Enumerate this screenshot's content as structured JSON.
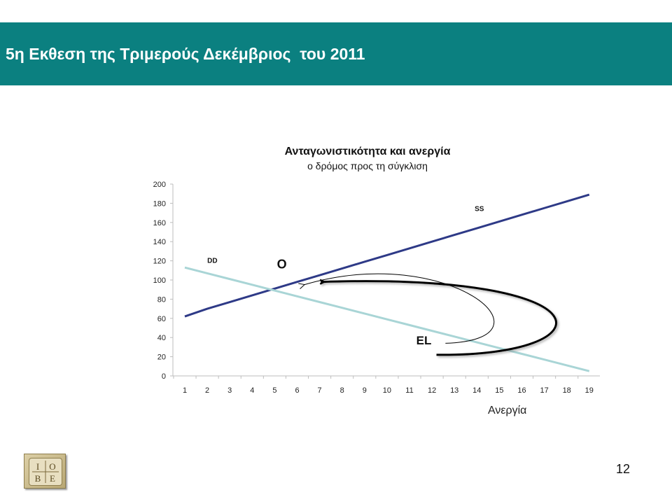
{
  "slide": {
    "title": "5η Εκθεση της Τριμερούς Δεκέμβριος  του 2011",
    "page_number": "12",
    "logo_text": "ΙΟΒΕ",
    "colors": {
      "header": "#0b8080",
      "ss_line": "#2e3a87",
      "dd_line": "#a9d5d6",
      "arrows": "#000000"
    }
  },
  "chart_data": {
    "type": "line",
    "title": "Ανταγωνιστικότητα και ανεργία",
    "subtitle": "ο δρόμος προς τη σύγκλιση",
    "xlabel": "Ανεργία",
    "ylabel": "",
    "x": [
      1,
      2,
      3,
      4,
      5,
      6,
      7,
      8,
      9,
      10,
      11,
      12,
      13,
      14,
      15,
      16,
      17,
      18,
      19
    ],
    "xlim": [
      1,
      19
    ],
    "ylim": [
      0,
      200
    ],
    "yticks": [
      0,
      20,
      40,
      60,
      80,
      100,
      120,
      140,
      160,
      180,
      200
    ],
    "grid": false,
    "series": [
      {
        "name": "SS",
        "color": "#2e3a87",
        "values": [
          62,
          70,
          77,
          84,
          91,
          98,
          105,
          112,
          119,
          126,
          133,
          140,
          147,
          154,
          161,
          168,
          175,
          182,
          189
        ]
      },
      {
        "name": "DD",
        "color": "#a9d5d6",
        "values": [
          113,
          107,
          101,
          95,
          89,
          83,
          77,
          71,
          65,
          59,
          53,
          47,
          41,
          35,
          29,
          23,
          17,
          11,
          5
        ]
      }
    ],
    "annotations": [
      {
        "label": "O",
        "x": 5.1,
        "y": 112
      },
      {
        "label": "EL",
        "x": 11.3,
        "y": 33
      },
      {
        "label": "DD",
        "x": 2.0,
        "y": 118
      },
      {
        "label": "SS",
        "x": 13.9,
        "y": 172
      }
    ],
    "paths": [
      {
        "name": "thick-arrow",
        "points": [
          [
            12.2,
            22
          ],
          [
            20,
            20
          ],
          [
            20,
            108
          ],
          [
            7.05,
            98
          ]
        ]
      },
      {
        "name": "thin-arrow",
        "points": [
          [
            12.6,
            34
          ],
          [
            17.8,
            38
          ],
          [
            12.8,
            140
          ],
          [
            6.3,
            95
          ]
        ]
      }
    ]
  }
}
